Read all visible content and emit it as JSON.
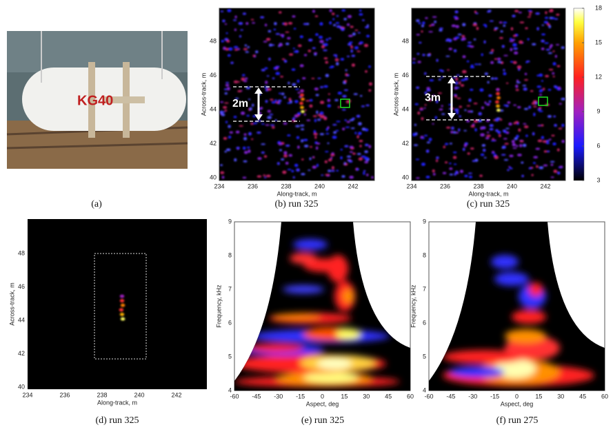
{
  "photo": {
    "label": "KG40"
  },
  "panels": [
    {
      "caption": "(a)"
    },
    {
      "caption": "(b) run 325",
      "xlabel": "Along-track, m",
      "ylabel": "Across-track, m",
      "xticks": [
        234,
        236,
        238,
        240,
        242
      ],
      "yticks": [
        40,
        42,
        44,
        46,
        48
      ],
      "annotation": "2m"
    },
    {
      "caption": "(c) run 325",
      "xlabel": "Along-track, m",
      "ylabel": "Across-track, m",
      "xticks": [
        234,
        236,
        238,
        240,
        242
      ],
      "yticks": [
        40,
        42,
        44,
        46,
        48
      ],
      "annotation": "3m"
    },
    {
      "caption": "(d) run 325",
      "xlabel": "Along-track, m",
      "ylabel": "Across-track, m",
      "xticks": [
        234,
        236,
        238,
        240,
        242
      ],
      "yticks": [
        40,
        42,
        44,
        46,
        48
      ]
    },
    {
      "caption": "(e) run 325",
      "xlabel": "Aspect, deg",
      "ylabel": "Frequency, kHz",
      "xticks": [
        -60,
        -45,
        -30,
        -15,
        0,
        15,
        30,
        45,
        60
      ],
      "yticks": [
        4,
        5,
        6,
        7,
        8,
        9
      ]
    },
    {
      "caption": "(f) run 275",
      "xlabel": "Aspect, deg",
      "ylabel": "Frequency, kHz",
      "xticks": [
        -60,
        -45,
        -30,
        -15,
        0,
        15,
        30,
        45,
        60
      ],
      "yticks": [
        4,
        5,
        6,
        7,
        8,
        9
      ]
    }
  ],
  "colorbar": {
    "ticks": [
      3,
      6,
      9,
      12,
      15,
      18
    ]
  }
}
